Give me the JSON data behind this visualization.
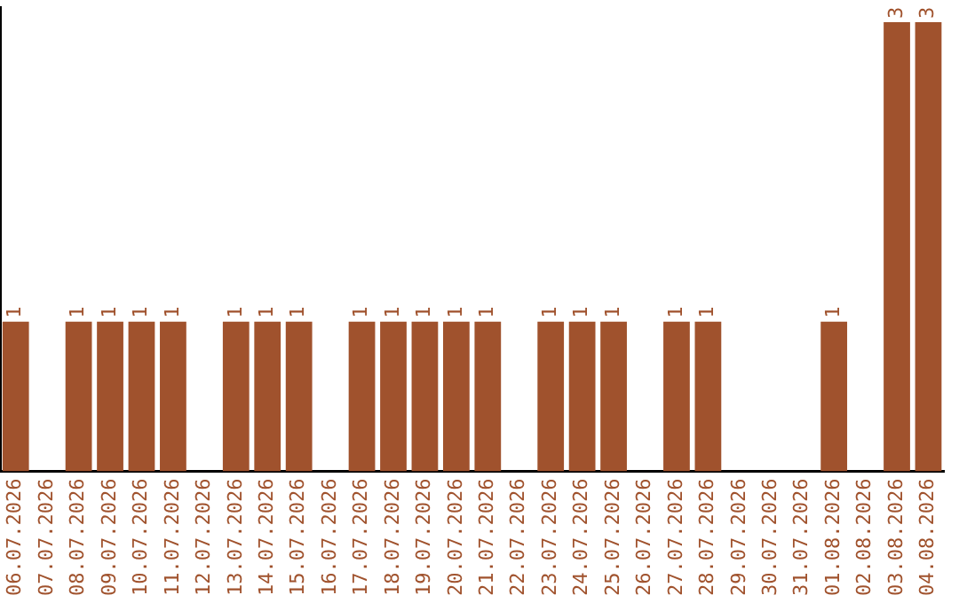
{
  "chart_data": {
    "type": "bar",
    "categories": [
      "06.07.2026",
      "07.07.2026",
      "08.07.2026",
      "09.07.2026",
      "10.07.2026",
      "11.07.2026",
      "12.07.2026",
      "13.07.2026",
      "14.07.2026",
      "15.07.2026",
      "16.07.2026",
      "17.07.2026",
      "18.07.2026",
      "19.07.2026",
      "20.07.2026",
      "21.07.2026",
      "22.07.2026",
      "23.07.2026",
      "24.07.2026",
      "25.07.2026",
      "26.07.2026",
      "27.07.2026",
      "28.07.2026",
      "29.07.2026",
      "30.07.2026",
      "31.07.2026",
      "01.08.2026",
      "02.08.2026",
      "03.08.2026",
      "04.08.2026"
    ],
    "values": [
      1,
      0,
      1,
      1,
      1,
      1,
      0,
      1,
      1,
      1,
      0,
      1,
      1,
      1,
      1,
      1,
      0,
      1,
      1,
      1,
      0,
      1,
      1,
      0,
      0,
      0,
      1,
      0,
      3,
      3
    ],
    "value_labels": [
      "1",
      null,
      "1",
      "1",
      "1",
      "1",
      null,
      "1",
      "1",
      "1",
      null,
      "1",
      "1",
      "1",
      "1",
      "1",
      null,
      "1",
      "1",
      "1",
      null,
      "1",
      "1",
      null,
      null,
      null,
      "1",
      null,
      "3",
      "3"
    ],
    "color": "#a0522d",
    "ylim": [
      0,
      3.1
    ],
    "tick_labels": "x",
    "grid": false,
    "legend": false
  }
}
